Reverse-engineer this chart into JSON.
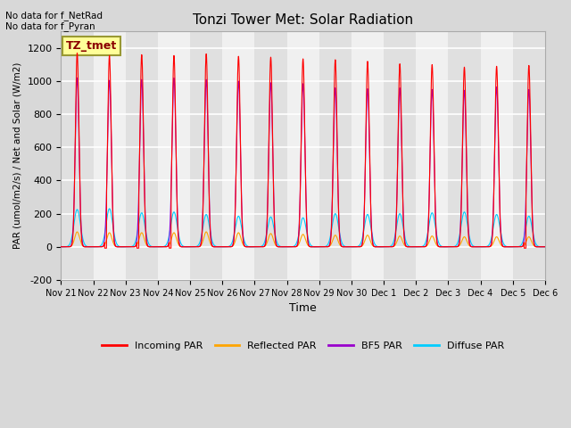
{
  "title": "Tonzi Tower Met: Solar Radiation",
  "ylabel": "PAR (umol/m2/s) / Net and Solar (W/m2)",
  "xlabel": "Time",
  "ylim": [
    -200,
    1300
  ],
  "yticks": [
    -200,
    0,
    200,
    400,
    600,
    800,
    1000,
    1200
  ],
  "text_upper_left": "No data for f_NetRad\nNo data for f_Pyran",
  "box_label": "TZ_tmet",
  "box_color": "#ffff99",
  "box_text_color": "#8b0000",
  "legend_entries": [
    "Incoming PAR",
    "Reflected PAR",
    "BF5 PAR",
    "Diffuse PAR"
  ],
  "legend_colors": [
    "#ff0000",
    "#ffa500",
    "#9900cc",
    "#00ccff"
  ],
  "colors": {
    "incoming": "#ff0000",
    "reflected": "#ffa500",
    "bf5": "#9900cc",
    "diffuse": "#00ccff"
  },
  "num_days": 15,
  "xtick_labels": [
    "Nov 21",
    "Nov 22",
    "Nov 23",
    "Nov 24",
    "Nov 25",
    "Nov 26",
    "Nov 27",
    "Nov 28",
    "Nov 29",
    "Nov 30",
    "Dec 1",
    "Dec 2",
    "Dec 3",
    "Dec 4",
    "Dec 5",
    "Dec 6"
  ],
  "incoming_peaks": [
    1170,
    1155,
    1160,
    1155,
    1165,
    1150,
    1145,
    1135,
    1130,
    1120,
    1105,
    1100,
    1085,
    1090,
    1095
  ],
  "bf5_peaks": [
    1020,
    1005,
    1010,
    1020,
    1010,
    1000,
    990,
    985,
    960,
    955,
    960,
    950,
    945,
    965,
    950
  ],
  "diffuse_peaks": [
    225,
    230,
    205,
    210,
    195,
    185,
    180,
    175,
    200,
    195,
    200,
    205,
    210,
    195,
    185
  ],
  "reflected_peaks": [
    90,
    85,
    85,
    85,
    90,
    85,
    80,
    75,
    70,
    70,
    65,
    65,
    60,
    60,
    60
  ],
  "bg_stripe_light": "#f0f0f0",
  "bg_stripe_dark": "#e0e0e0",
  "grid_color": "#ffffff",
  "fig_bg": "#d8d8d8"
}
